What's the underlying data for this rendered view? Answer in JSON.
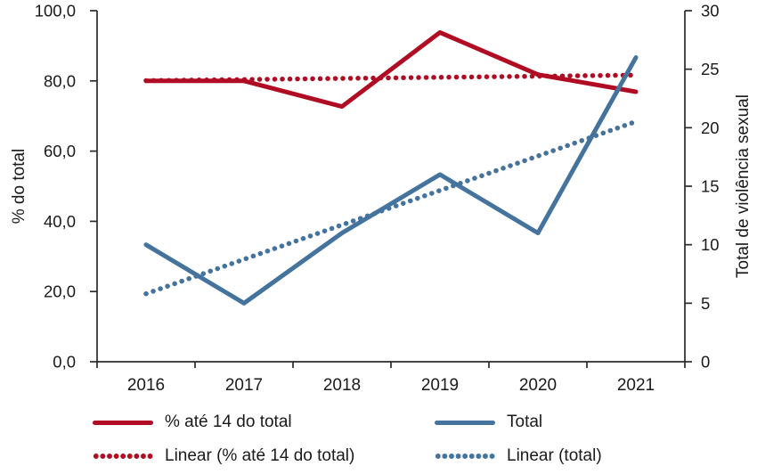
{
  "colors": {
    "red_series": "#b00c23",
    "blue_series": "#44739e",
    "text": "#1a1a1a",
    "axis": "#2b2b2b",
    "background": "#ffffff"
  },
  "chart_data": {
    "type": "line",
    "title": "",
    "categories": [
      "2016",
      "2017",
      "2018",
      "2019",
      "2020",
      "2021"
    ],
    "series": [
      {
        "id": "pct-ate-14",
        "name": "% até 14 do total",
        "axis": "left",
        "style": "solid",
        "color": "#b00c23",
        "values": [
          80.0,
          80.0,
          72.7,
          93.8,
          81.8,
          76.9
        ]
      },
      {
        "id": "total",
        "name": "Total",
        "axis": "right",
        "style": "solid",
        "color": "#44739e",
        "values": [
          10,
          5,
          11,
          16,
          11,
          26
        ]
      },
      {
        "id": "linear-pct-ate-14",
        "name": "Linear (% até 14 do total)",
        "axis": "left",
        "style": "dotted",
        "color": "#b00c23",
        "trend_of": "pct-ate-14"
      },
      {
        "id": "linear-total",
        "name": "Linear (total)",
        "axis": "right",
        "style": "dotted",
        "color": "#44739e",
        "trend_of": "total"
      }
    ],
    "left_axis": {
      "label": "% do total",
      "min": 0,
      "max": 100,
      "tick_labels": [
        "0,0",
        "20,0",
        "40,0",
        "60,0",
        "80,0",
        "100,0"
      ],
      "tick_values": [
        0,
        20,
        40,
        60,
        80,
        100
      ]
    },
    "right_axis": {
      "label": "Total de violência sexual",
      "min": 0,
      "max": 30,
      "tick_labels": [
        "0",
        "5",
        "10",
        "15",
        "20",
        "25",
        "30"
      ],
      "tick_values": [
        0,
        5,
        10,
        15,
        20,
        25,
        30
      ]
    },
    "legend_position": "bottom",
    "grid": "off"
  }
}
